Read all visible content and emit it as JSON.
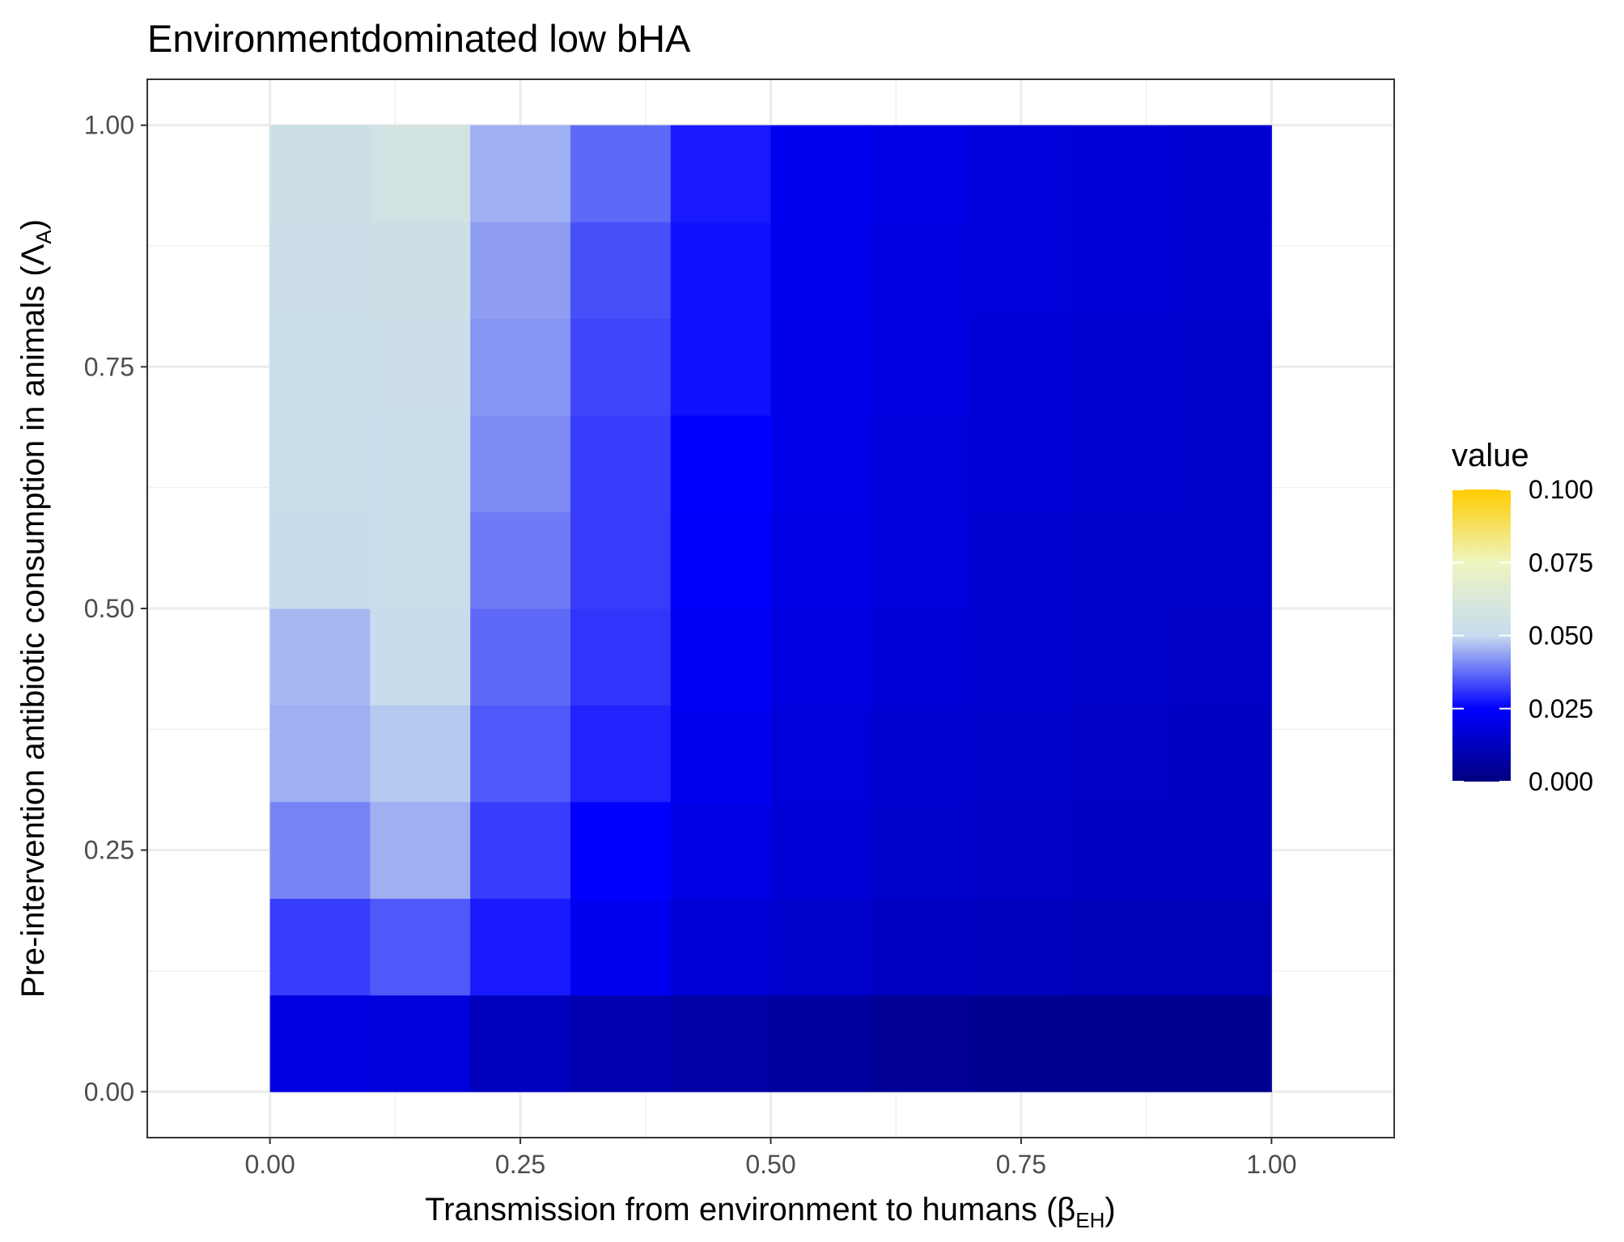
{
  "chart_data": {
    "type": "heatmap",
    "title": "Environmentdominated low bHA",
    "xlabel": {
      "main": "Transmission from environment to humans (",
      "symbol": "β",
      "subscript": "EH",
      "close": ")"
    },
    "ylabel": {
      "main": "Pre-intervention antibiotic consumption in animals (",
      "symbol": "Λ",
      "subscript": "A",
      "close": ")"
    },
    "x_tick_labels": [
      "0.00",
      "0.25",
      "0.50",
      "0.75",
      "1.00"
    ],
    "y_tick_labels": [
      "0.00",
      "0.25",
      "0.50",
      "0.75",
      "1.00"
    ],
    "xlim": [
      -0.1225,
      1.1225
    ],
    "ylim": [
      -0.0475,
      1.0475
    ],
    "grid": true,
    "x": [
      0.05,
      0.15,
      0.25,
      0.35,
      0.45,
      0.55,
      0.65,
      0.75,
      0.85,
      0.95
    ],
    "y": [
      0.05,
      0.15,
      0.25,
      0.35,
      0.45,
      0.55,
      0.65,
      0.75,
      0.85,
      0.95
    ],
    "cell_width": 0.1,
    "cell_height": 0.1,
    "z": [
      [
        0.019,
        0.018,
        0.012,
        0.009,
        0.007,
        0.006,
        0.004,
        0.003,
        0.003,
        0.003
      ],
      [
        0.032,
        0.035,
        0.028,
        0.022,
        0.017,
        0.015,
        0.013,
        0.012,
        0.011,
        0.011
      ],
      [
        0.04,
        0.045,
        0.032,
        0.025,
        0.02,
        0.017,
        0.015,
        0.014,
        0.013,
        0.013
      ],
      [
        0.045,
        0.048,
        0.035,
        0.029,
        0.022,
        0.018,
        0.016,
        0.015,
        0.014,
        0.013
      ],
      [
        0.046,
        0.051,
        0.037,
        0.031,
        0.023,
        0.019,
        0.017,
        0.016,
        0.015,
        0.014
      ],
      [
        0.051,
        0.052,
        0.039,
        0.032,
        0.024,
        0.02,
        0.018,
        0.016,
        0.015,
        0.015
      ],
      [
        0.052,
        0.052,
        0.041,
        0.032,
        0.025,
        0.021,
        0.018,
        0.017,
        0.016,
        0.015
      ],
      [
        0.052,
        0.053,
        0.042,
        0.033,
        0.027,
        0.021,
        0.019,
        0.017,
        0.016,
        0.015
      ],
      [
        0.053,
        0.054,
        0.043,
        0.034,
        0.027,
        0.022,
        0.019,
        0.018,
        0.017,
        0.016
      ],
      [
        0.054,
        0.057,
        0.045,
        0.037,
        0.028,
        0.022,
        0.02,
        0.018,
        0.017,
        0.016
      ]
    ],
    "legend": {
      "title": "value",
      "position": "right",
      "min": 0.0,
      "max": 0.1,
      "breaks": [
        0.0,
        0.025,
        0.05,
        0.075,
        0.1
      ],
      "labels": [
        "0.000",
        "0.025",
        "0.050",
        "0.075",
        "0.100"
      ]
    },
    "color_scale": [
      {
        "value": 0.0,
        "color": "#000080"
      },
      {
        "value": 0.025,
        "color": "#0000ff"
      },
      {
        "value": 0.05,
        "color": "#c6dbef"
      },
      {
        "value": 0.075,
        "color": "#eef5c0"
      },
      {
        "value": 0.1,
        "color": "#ffcc00"
      }
    ]
  }
}
